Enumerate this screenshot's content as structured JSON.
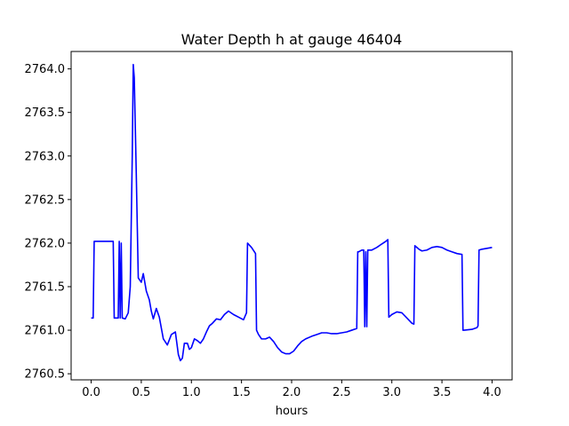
{
  "chart_data": {
    "type": "line",
    "title": "Water Depth h at gauge 46404",
    "xlabel": "hours",
    "ylabel": "",
    "xlim": [
      -0.2,
      4.2
    ],
    "ylim": [
      2760.43,
      2764.2
    ],
    "grid": false,
    "x_ticks": [
      0.0,
      0.5,
      1.0,
      1.5,
      2.0,
      2.5,
      3.0,
      3.5,
      4.0
    ],
    "x_tick_labels": [
      "0.0",
      "0.5",
      "1.0",
      "1.5",
      "2.0",
      "2.5",
      "3.0",
      "3.5",
      "4.0"
    ],
    "y_ticks": [
      2760.5,
      2761.0,
      2761.5,
      2762.0,
      2762.5,
      2763.0,
      2763.5,
      2764.0
    ],
    "y_tick_labels": [
      "2760.5",
      "2761.0",
      "2761.5",
      "2762.0",
      "2762.5",
      "2763.0",
      "2763.5",
      "2764.0"
    ],
    "series": [
      {
        "color": "#0000ff",
        "x": [
          0.0,
          0.02,
          0.03,
          0.1,
          0.2,
          0.22,
          0.23,
          0.27,
          0.28,
          0.29,
          0.3,
          0.31,
          0.34,
          0.37,
          0.39,
          0.41,
          0.42,
          0.43,
          0.45,
          0.47,
          0.5,
          0.52,
          0.55,
          0.58,
          0.6,
          0.62,
          0.65,
          0.68,
          0.72,
          0.76,
          0.8,
          0.84,
          0.87,
          0.89,
          0.91,
          0.93,
          0.96,
          0.98,
          1.0,
          1.03,
          1.06,
          1.09,
          1.12,
          1.15,
          1.18,
          1.21,
          1.25,
          1.29,
          1.33,
          1.37,
          1.42,
          1.47,
          1.52,
          1.55,
          1.56,
          1.6,
          1.64,
          1.65,
          1.67,
          1.7,
          1.74,
          1.78,
          1.82,
          1.86,
          1.9,
          1.94,
          1.98,
          2.02,
          2.06,
          2.1,
          2.14,
          2.2,
          2.25,
          2.3,
          2.35,
          2.4,
          2.45,
          2.5,
          2.55,
          2.6,
          2.65,
          2.66,
          2.67,
          2.7,
          2.72,
          2.73,
          2.74,
          2.75,
          2.76,
          2.8,
          2.85,
          2.9,
          2.94,
          2.96,
          2.97,
          3.0,
          3.05,
          3.1,
          3.15,
          3.2,
          3.22,
          3.23,
          3.27,
          3.3,
          3.35,
          3.4,
          3.45,
          3.5,
          3.55,
          3.6,
          3.65,
          3.7,
          3.71,
          3.72,
          3.8,
          3.85,
          3.86,
          3.87,
          3.9,
          3.95,
          4.0
        ],
        "y": [
          2761.14,
          2761.14,
          2762.02,
          2762.02,
          2762.02,
          2762.02,
          2761.14,
          2761.14,
          2762.02,
          2761.14,
          2762.0,
          2761.14,
          2761.13,
          2761.2,
          2761.5,
          2763.0,
          2764.05,
          2763.9,
          2762.8,
          2761.6,
          2761.55,
          2761.65,
          2761.45,
          2761.35,
          2761.22,
          2761.13,
          2761.25,
          2761.15,
          2760.9,
          2760.83,
          2760.95,
          2760.98,
          2760.72,
          2760.65,
          2760.68,
          2760.85,
          2760.85,
          2760.78,
          2760.8,
          2760.9,
          2760.88,
          2760.85,
          2760.9,
          2760.98,
          2761.05,
          2761.08,
          2761.13,
          2761.12,
          2761.18,
          2761.22,
          2761.18,
          2761.15,
          2761.12,
          2761.2,
          2762.0,
          2761.95,
          2761.88,
          2761.0,
          2760.95,
          2760.9,
          2760.9,
          2760.92,
          2760.87,
          2760.8,
          2760.75,
          2760.73,
          2760.73,
          2760.76,
          2760.82,
          2760.87,
          2760.9,
          2760.93,
          2760.95,
          2760.97,
          2760.97,
          2760.96,
          2760.96,
          2760.97,
          2760.98,
          2761.0,
          2761.02,
          2761.9,
          2761.9,
          2761.92,
          2761.92,
          2761.04,
          2761.9,
          2761.04,
          2761.92,
          2761.92,
          2761.95,
          2761.99,
          2762.02,
          2762.04,
          2761.15,
          2761.18,
          2761.21,
          2761.2,
          2761.14,
          2761.08,
          2761.07,
          2761.97,
          2761.93,
          2761.91,
          2761.92,
          2761.95,
          2761.96,
          2761.95,
          2761.92,
          2761.9,
          2761.88,
          2761.87,
          2761.0,
          2761.0,
          2761.01,
          2761.03,
          2761.05,
          2761.92,
          2761.93,
          2761.94,
          2761.95
        ]
      }
    ]
  }
}
